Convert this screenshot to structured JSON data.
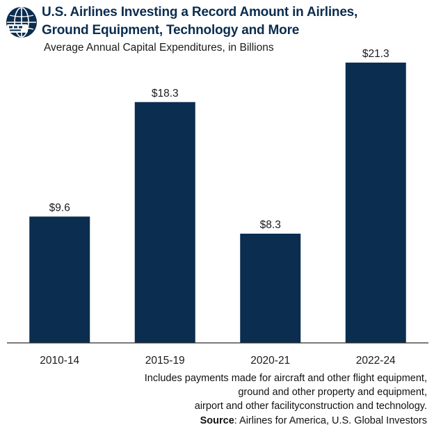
{
  "header": {
    "title_line1": "U.S. Airlines Investing a Record Amount in Airlines,",
    "title_line2": "Ground Equipment, Technology and More",
    "subtitle": "Average Annual Capital Expenditures, in Billions",
    "logo_icon": "globe-plane-icon"
  },
  "colors": {
    "bar": "#0b2d4f",
    "axis": "#2b2b2b",
    "title": "#0b2d4f"
  },
  "chart_data": {
    "type": "bar",
    "categories": [
      "2010-14",
      "2015-19",
      "2020-21",
      "2022-24"
    ],
    "values": [
      9.6,
      18.3,
      8.3,
      21.3
    ],
    "value_labels": [
      "$9.6",
      "$18.3",
      "$8.3",
      "$21.3"
    ],
    "title": "U.S. Airlines Investing a Record Amount in Airlines, Ground Equipment, Technology and More",
    "subtitle": "Average Annual Capital Expenditures, in Billions",
    "xlabel": "",
    "ylabel": "",
    "ylim": [
      0,
      21.3
    ],
    "grid": false,
    "legend": "none"
  },
  "footer": {
    "note_line1": "Includes payments made for aircraft and other flight equipment,",
    "note_line2": "ground and other property and equipment,",
    "note_line3": "airport and other facilityconstruction and technology.",
    "source_label": "Source",
    "source_text": ": Airlines for America, U.S. Global Investors"
  }
}
